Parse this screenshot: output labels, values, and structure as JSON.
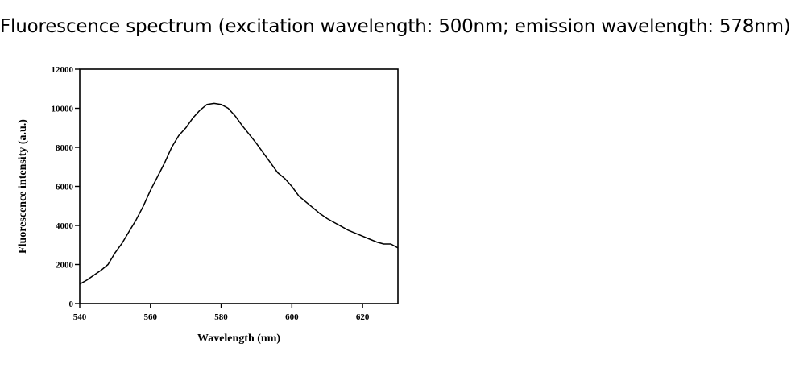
{
  "page": {
    "title": "Fluorescence spectrum (excitation wavelength: 500nm; emission wavelength: 578nm)"
  },
  "chart_data": {
    "type": "line",
    "xlabel": "Wavelength (nm)",
    "ylabel": "Fluorescence intensity (a.u.)",
    "xlim": [
      540,
      630
    ],
    "ylim": [
      0,
      12000
    ],
    "x_ticks": [
      540,
      560,
      580,
      600,
      620
    ],
    "y_ticks": [
      0,
      2000,
      4000,
      6000,
      8000,
      10000,
      12000
    ],
    "grid": false,
    "line_color": "#000000",
    "series": [
      {
        "x": [
          540,
          542,
          544,
          546,
          548,
          550,
          552,
          554,
          556,
          558,
          560,
          562,
          564,
          566,
          568,
          570,
          572,
          574,
          576,
          578,
          580,
          582,
          584,
          586,
          588,
          590,
          592,
          594,
          596,
          598,
          600,
          602,
          604,
          606,
          608,
          610,
          612,
          614,
          616,
          618,
          620,
          622,
          624,
          626,
          628,
          630
        ],
        "y": [
          1000,
          1200,
          1450,
          1700,
          2000,
          2600,
          3100,
          3700,
          4300,
          5000,
          5800,
          6500,
          7200,
          8000,
          8600,
          9000,
          9500,
          9900,
          10200,
          10250,
          10200,
          10000,
          9600,
          9100,
          8650,
          8200,
          7700,
          7200,
          6700,
          6400,
          6000,
          5500,
          5200,
          4900,
          4600,
          4350,
          4150,
          3950,
          3750,
          3600,
          3450,
          3300,
          3150,
          3050,
          3050,
          2850
        ]
      }
    ]
  }
}
